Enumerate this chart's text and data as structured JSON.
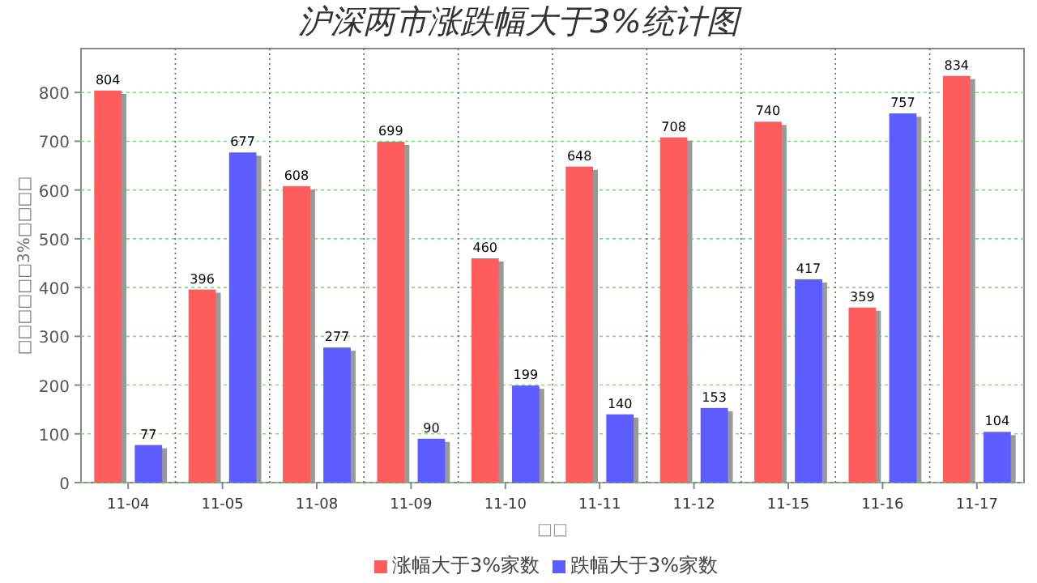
{
  "chart_data": {
    "type": "bar",
    "title": "沪深两市涨跌幅大于3%统计图",
    "xlabel": "□□",
    "ylabel": "□□□□□□3%□□□□",
    "categories": [
      "11-04",
      "11-05",
      "11-08",
      "11-09",
      "11-10",
      "11-11",
      "11-12",
      "11-15",
      "11-16",
      "11-17"
    ],
    "series": [
      {
        "name": "涨幅大于3%家数",
        "color": "#ff5c5c",
        "values": [
          804,
          396,
          608,
          699,
          460,
          648,
          708,
          740,
          359,
          834
        ]
      },
      {
        "name": "跌幅大于3%家数",
        "color": "#5c5cff",
        "values": [
          77,
          677,
          277,
          90,
          199,
          140,
          153,
          417,
          757,
          104
        ]
      }
    ],
    "ylim": [
      0,
      890
    ],
    "yticks": [
      0,
      100,
      200,
      300,
      400,
      500,
      600,
      700,
      800
    ],
    "grid": true,
    "legend": "bottom",
    "data_labels": true
  }
}
